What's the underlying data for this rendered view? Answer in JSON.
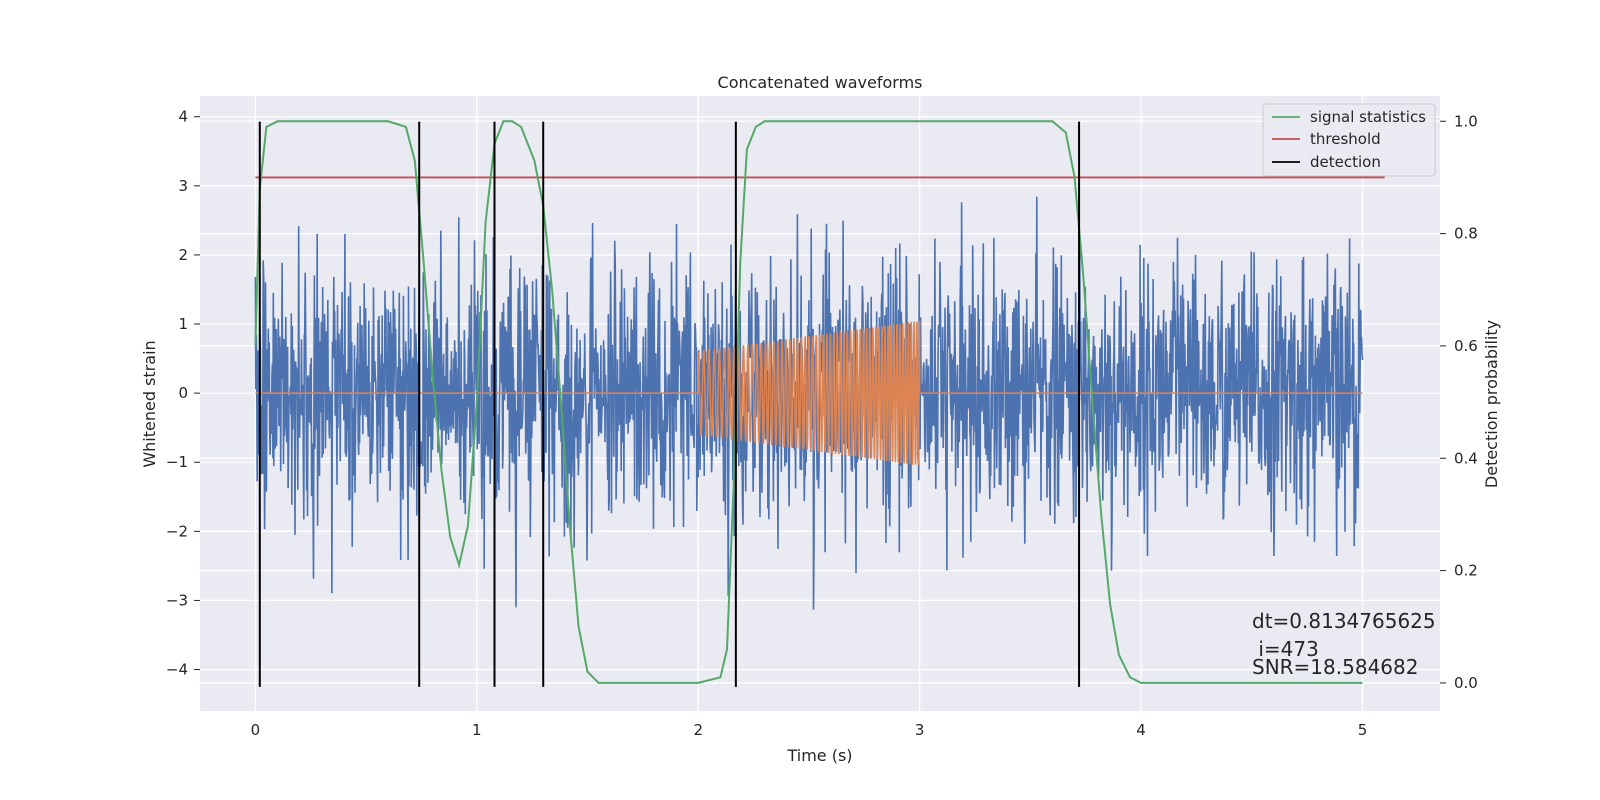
{
  "chart_data": {
    "type": "line",
    "title": "Concatenated waveforms",
    "xlabel": "Time (s)",
    "ylabel": "Whitened strain",
    "ylabel_right": "Detection probability",
    "xlim": [
      -0.25,
      5.35
    ],
    "ylim": [
      -4.6,
      4.3
    ],
    "ylim_right": [
      -0.05,
      1.045
    ],
    "x_ticks": [
      0,
      1,
      2,
      3,
      4,
      5
    ],
    "y_ticks": [
      -4,
      -3,
      -2,
      -1,
      0,
      1,
      2,
      3,
      4
    ],
    "y_ticks_right": [
      0.0,
      0.2,
      0.4,
      0.6,
      0.8,
      1.0
    ],
    "y_tick_labels": [
      "−4",
      "−3",
      "−2",
      "−1",
      "0",
      "1",
      "2",
      "3",
      "4"
    ],
    "y_tick_labels_right": [
      "0.0",
      "0.2",
      "0.4",
      "0.6",
      "0.8",
      "1.0"
    ],
    "grid": true,
    "legend_position": "top-right",
    "colors": {
      "noise": "#4c72b0",
      "template": "#dd8452",
      "signal_statistics": "#55a868",
      "threshold": "#c44e52",
      "detection": "#000000",
      "axes_bg": "#eaeaf2",
      "grid": "#ffffff"
    },
    "series": [
      {
        "name": "signal statistics",
        "axis": "right",
        "x": [
          0.0,
          0.02,
          0.05,
          0.1,
          0.2,
          0.6,
          0.68,
          0.72,
          0.76,
          0.8,
          0.84,
          0.88,
          0.92,
          0.96,
          1.0,
          1.04,
          1.08,
          1.12,
          1.16,
          1.2,
          1.26,
          1.3,
          1.34,
          1.38,
          1.42,
          1.46,
          1.5,
          1.55,
          1.6,
          2.0,
          2.1,
          2.13,
          2.16,
          2.19,
          2.22,
          2.26,
          2.3,
          2.4,
          3.6,
          3.66,
          3.7,
          3.74,
          3.78,
          3.82,
          3.86,
          3.9,
          3.95,
          4.0,
          5.0
        ],
        "y": [
          0.6,
          0.88,
          0.99,
          1.0,
          1.0,
          1.0,
          0.99,
          0.93,
          0.75,
          0.55,
          0.38,
          0.26,
          0.21,
          0.28,
          0.5,
          0.82,
          0.96,
          1.0,
          1.0,
          0.99,
          0.93,
          0.85,
          0.7,
          0.5,
          0.28,
          0.1,
          0.02,
          0.0,
          0.0,
          0.0,
          0.01,
          0.06,
          0.35,
          0.75,
          0.95,
          0.99,
          1.0,
          1.0,
          1.0,
          0.98,
          0.9,
          0.72,
          0.5,
          0.3,
          0.14,
          0.05,
          0.01,
          0.0,
          0.0
        ]
      },
      {
        "name": "threshold",
        "axis": "right",
        "x": [
          0.0,
          5.1
        ],
        "y": [
          0.9,
          0.9
        ]
      },
      {
        "name": "detection",
        "axis": "left",
        "x": [
          0.02,
          0.74,
          1.08,
          1.3,
          2.17,
          3.72
        ],
        "y_range": [
          -4.25,
          3.93
        ]
      },
      {
        "name": "",
        "axis": "left",
        "description_type": "noise",
        "x_range": [
          0.0,
          5.0
        ],
        "amplitude_rms": 0.9,
        "samples": 2400
      },
      {
        "name": "",
        "axis": "left",
        "description_type": "template",
        "x_range": [
          0.0,
          5.0
        ],
        "chirp": {
          "start": 2.0,
          "end": 3.0,
          "amp_start": 0.6,
          "amp_end": 1.05,
          "freq_start": 40,
          "freq_end": 80
        }
      }
    ],
    "annotations": [
      "dt=0.8134765625",
      " i=473",
      "SNR=18.584682"
    ],
    "legend": [
      "signal statistics",
      "threshold",
      "detection"
    ]
  }
}
